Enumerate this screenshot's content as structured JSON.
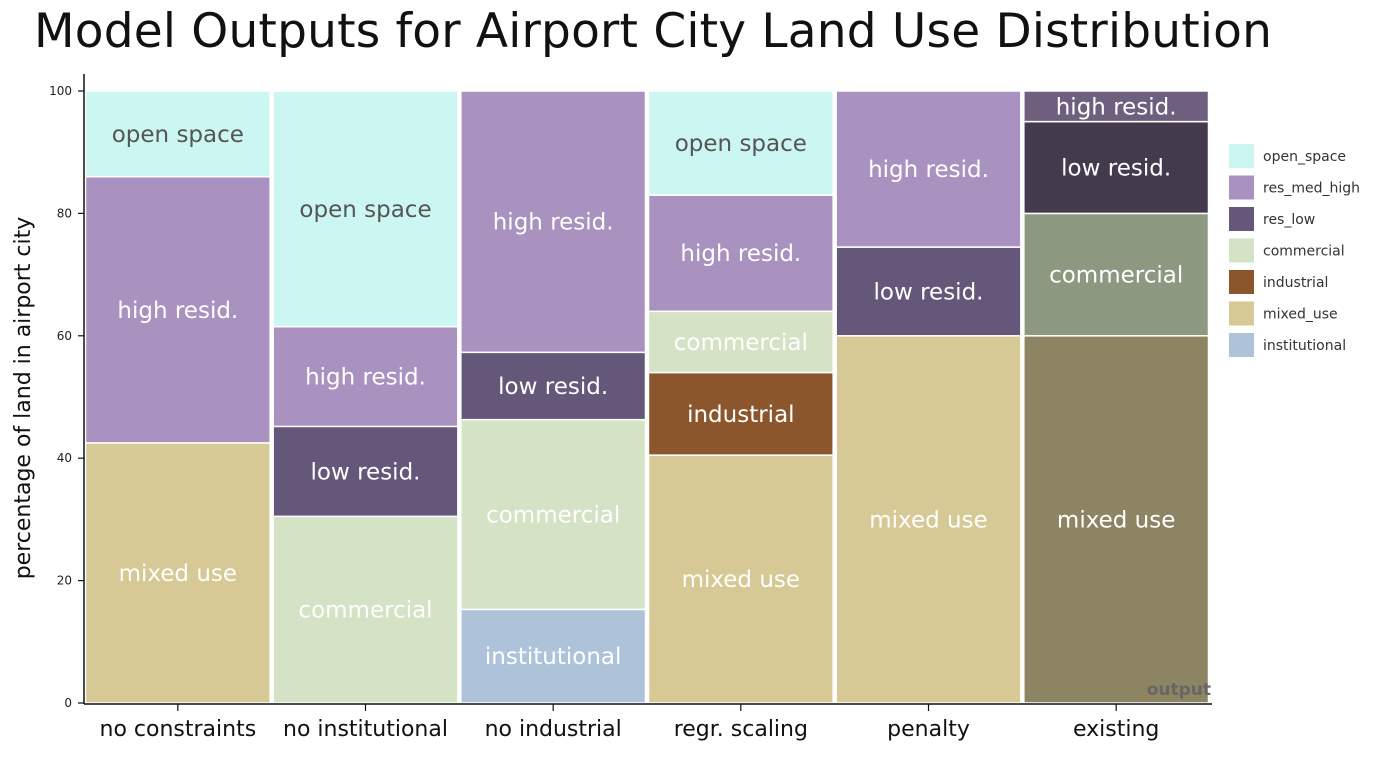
{
  "chart_data": {
    "type": "bar",
    "stacked": true,
    "title": "Model Outputs for Airport City Land Use Distribution",
    "ylabel": "percentage of land in airport city",
    "corner_label": "output",
    "ylim": [
      0,
      100
    ],
    "yticks": [
      0,
      20,
      40,
      60,
      80,
      100
    ],
    "categories": [
      "no constraints",
      "no institutional",
      "no industrial",
      "regr. scaling",
      "penalty",
      "existing"
    ],
    "legend": [
      {
        "key": "open_space",
        "label": "open_space",
        "color": "#ccf6f1"
      },
      {
        "key": "res_med_high",
        "label": "res_med_high",
        "color": "#a992c0"
      },
      {
        "key": "res_low",
        "label": "res_low",
        "color": "#64577a"
      },
      {
        "key": "commercial",
        "label": "commercial",
        "color": "#d4e2c5"
      },
      {
        "key": "industrial",
        "label": "industrial",
        "color": "#8b562c"
      },
      {
        "key": "mixed_use",
        "label": "mixed_use",
        "color": "#d6c996"
      },
      {
        "key": "institutional",
        "label": "institutional",
        "color": "#aec2da"
      }
    ],
    "stacks": [
      {
        "category": "no constraints",
        "segments": [
          {
            "key": "mixed_use",
            "value": 42.5,
            "label": "mixed use",
            "text_color": "#ffffff",
            "fill": "#d6c996"
          },
          {
            "key": "res_med_high",
            "value": 43.5,
            "label": "high resid.",
            "text_color": "#ffffff",
            "fill": "#a992c0"
          },
          {
            "key": "open_space",
            "value": 14,
            "label": "open space",
            "text_color": "#555555",
            "fill": "#ccf6f1"
          }
        ]
      },
      {
        "category": "no institutional",
        "segments": [
          {
            "key": "commercial",
            "value": 30.5,
            "label": "commercial",
            "text_color": "#ffffff",
            "fill": "#d4e2c5"
          },
          {
            "key": "res_low",
            "value": 14.7,
            "label": "low resid.",
            "text_color": "#ffffff",
            "fill": "#64577a"
          },
          {
            "key": "res_med_high",
            "value": 16.3,
            "label": "high resid.",
            "text_color": "#ffffff",
            "fill": "#a992c0"
          },
          {
            "key": "open_space",
            "value": 38.5,
            "label": "open space",
            "text_color": "#555555",
            "fill": "#ccf6f1"
          }
        ]
      },
      {
        "category": "no industrial",
        "segments": [
          {
            "key": "institutional",
            "value": 15.3,
            "label": "institutional",
            "text_color": "#ffffff",
            "fill": "#aec2da"
          },
          {
            "key": "commercial",
            "value": 31,
            "label": "commercial",
            "text_color": "#ffffff",
            "fill": "#d4e2c5"
          },
          {
            "key": "res_low",
            "value": 11,
            "label": "low resid.",
            "text_color": "#ffffff",
            "fill": "#64577a"
          },
          {
            "key": "res_med_high",
            "value": 42.7,
            "label": "high resid.",
            "text_color": "#ffffff",
            "fill": "#a992c0"
          }
        ]
      },
      {
        "category": "regr. scaling",
        "segments": [
          {
            "key": "mixed_use",
            "value": 40.5,
            "label": "mixed use",
            "text_color": "#ffffff",
            "fill": "#d6c996"
          },
          {
            "key": "industrial",
            "value": 13.5,
            "label": "industrial",
            "text_color": "#ffffff",
            "fill": "#8b562c"
          },
          {
            "key": "commercial",
            "value": 10,
            "label": "commercial",
            "text_color": "#ffffff",
            "fill": "#d4e2c5"
          },
          {
            "key": "res_med_high",
            "value": 19,
            "label": "high resid.",
            "text_color": "#ffffff",
            "fill": "#a992c0"
          },
          {
            "key": "open_space",
            "value": 17,
            "label": "open space",
            "text_color": "#555555",
            "fill": "#ccf6f1"
          }
        ]
      },
      {
        "category": "penalty",
        "segments": [
          {
            "key": "mixed_use",
            "value": 60,
            "label": "mixed use",
            "text_color": "#ffffff",
            "fill": "#d6c996"
          },
          {
            "key": "res_low",
            "value": 14.5,
            "label": "low resid.",
            "text_color": "#ffffff",
            "fill": "#64577a"
          },
          {
            "key": "res_med_high",
            "value": 25.5,
            "label": "high resid.",
            "text_color": "#ffffff",
            "fill": "#a992c0"
          }
        ]
      },
      {
        "category": "existing",
        "segments": [
          {
            "key": "mixed_use",
            "value": 60,
            "label": "mixed use",
            "text_color": "#ffffff",
            "fill": "#8c8462"
          },
          {
            "key": "commercial",
            "value": 20,
            "label": "commercial",
            "text_color": "#ffffff",
            "fill": "#8d9880"
          },
          {
            "key": "res_low",
            "value": 15,
            "label": "low resid.",
            "text_color": "#ffffff",
            "fill": "#433a4e"
          },
          {
            "key": "res_med_high",
            "value": 5,
            "label": "high resid.",
            "text_color": "#ffffff",
            "fill": "#6f5f7e"
          }
        ]
      }
    ]
  }
}
